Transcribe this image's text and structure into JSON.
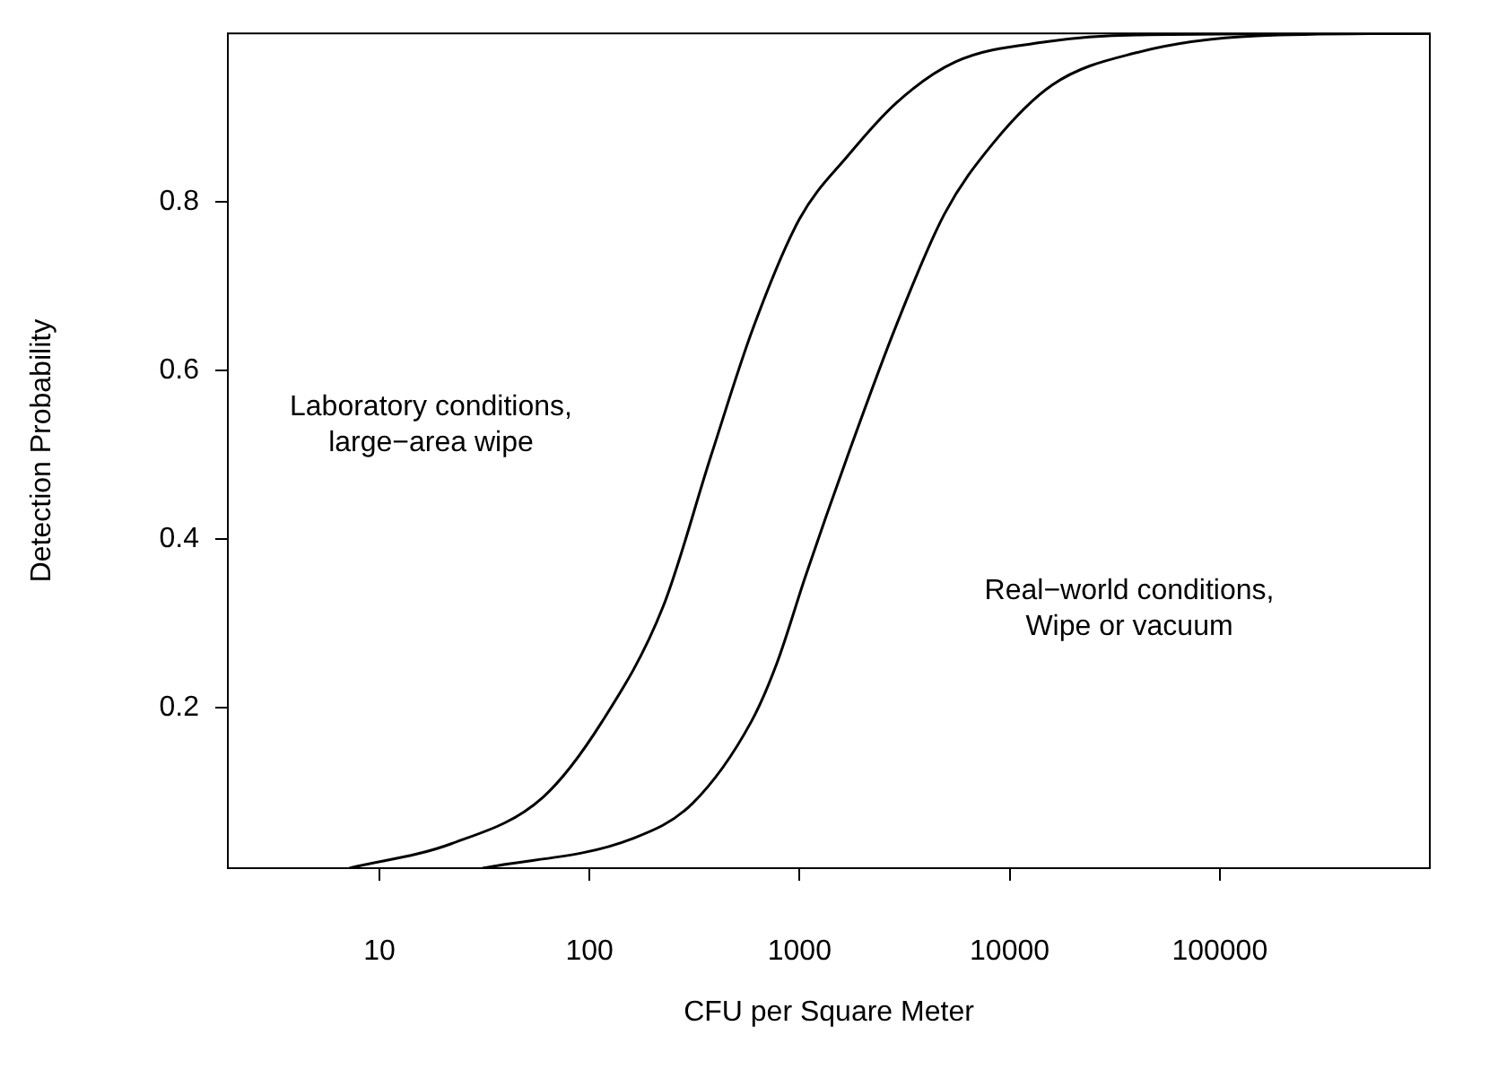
{
  "chart_data": {
    "type": "line",
    "xlabel": "CFU per Square Meter",
    "ylabel": "Detection Probability",
    "log": "x",
    "xlim": [
      1.9,
      1000000
    ],
    "xticks": [
      10,
      100,
      1000,
      10000,
      100000
    ],
    "ylim": [
      0.01,
      1
    ],
    "yticks": [
      0.2,
      0.4,
      0.6,
      0.8
    ],
    "grid": false,
    "legend": false,
    "marker": "none",
    "line_style": "solid",
    "series": [
      {
        "color": "#000000",
        "x": [
          7.2,
          22,
          60,
          115,
          224,
          380,
          600,
          1000,
          1700,
          2900,
          5500,
          15000,
          40000,
          1000000
        ],
        "values": [
          0.01,
          0.039,
          0.094,
          0.184,
          0.32,
          0.5,
          0.65,
          0.78,
          0.855,
          0.918,
          0.966,
          0.99,
          0.998,
          1
        ]
      },
      {
        "color": "#000000",
        "x": [
          31,
          160,
          310,
          590,
          780,
          1070,
          1700,
          2900,
          4900,
          8300,
          16000,
          40000,
          150000,
          1000000
        ],
        "values": [
          0.01,
          0.045,
          0.087,
          0.184,
          0.253,
          0.357,
          0.5,
          0.655,
          0.786,
          0.869,
          0.939,
          0.977,
          0.997,
          1
        ]
      }
    ],
    "annotations": [
      "Laboratory conditions,\nlarge−area wipe",
      "Real−world conditions,\nWipe or vacuum"
    ]
  }
}
